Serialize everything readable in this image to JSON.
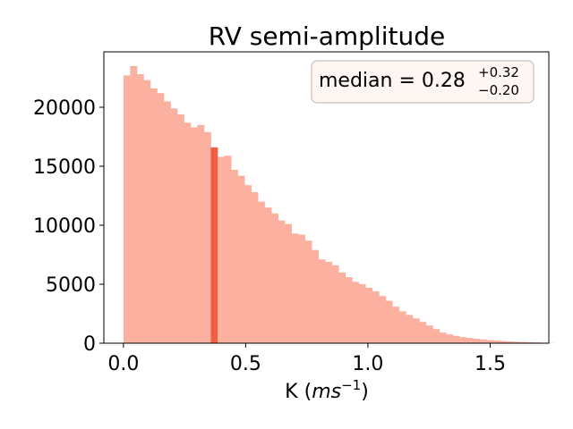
{
  "chart_data": {
    "type": "bar",
    "title": "RV semi-amplitude",
    "xlabel": "K (ms⁻¹)",
    "xlabel_parts": {
      "main": "K (",
      "italic": "ms",
      "sup": "−1",
      "close": ")"
    },
    "ylabel": "",
    "xlim": [
      -0.08,
      1.74
    ],
    "ylim": [
      0,
      24700
    ],
    "xticks": [
      0.0,
      0.5,
      1.0,
      1.5
    ],
    "xtick_labels": [
      "0.0",
      "0.5",
      "1.0",
      "1.5"
    ],
    "yticks": [
      0,
      5000,
      10000,
      15000,
      20000
    ],
    "ytick_labels": [
      "0",
      "5000",
      "10000",
      "15000",
      "20000"
    ],
    "grid": false,
    "bar_color": "#fcb0a0",
    "highlight_color": "#f0603e",
    "bins": {
      "start": 0.0,
      "width": 0.0275,
      "values": [
        22700,
        23500,
        22800,
        22300,
        21600,
        21200,
        20500,
        19900,
        19400,
        18700,
        18300,
        18500,
        17900,
        16600,
        15800,
        15900,
        14700,
        14200,
        13400,
        12800,
        12000,
        11500,
        11000,
        10400,
        10100,
        9300,
        9200,
        8700,
        7900,
        7100,
        6900,
        6600,
        6000,
        5600,
        5200,
        5000,
        4700,
        4400,
        4000,
        3600,
        3100,
        2700,
        2400,
        2100,
        1800,
        1500,
        1200,
        900,
        750,
        620,
        520,
        450,
        380,
        320,
        270,
        230,
        190,
        150,
        120,
        100,
        80,
        60,
        40,
        20
      ],
      "highlight_index": 13
    },
    "annotation": {
      "label": "median",
      "value": "0.28",
      "upper": "+0.32",
      "lower": "−0.20",
      "position": "top-right"
    }
  }
}
